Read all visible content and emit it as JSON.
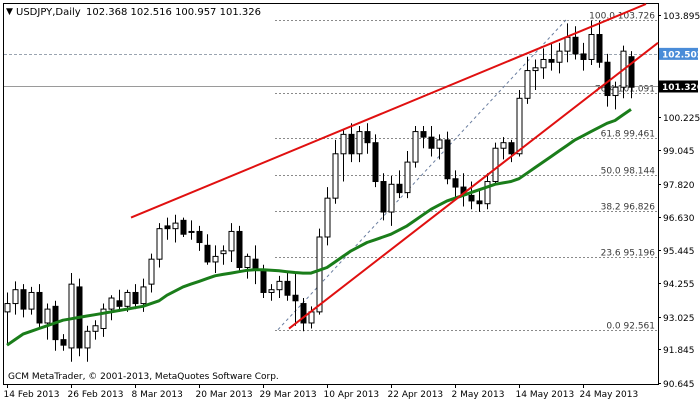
{
  "header": {
    "symbol_label": "USDJPY,Daily",
    "ohlc_label": "102.368 102.516 100.957 101.326"
  },
  "watermark": "GCM MetaTrader, © 2001-2013, MetaQuotes Software Corp.",
  "chart_data": {
    "type": "candlestick",
    "symbol": "USDJPY",
    "timeframe": "Daily",
    "ylim": [
      90.6,
      104.3
    ],
    "y_ticks": [
      "103.895",
      "102.502",
      "101.326",
      "100.225",
      "99.045",
      "97.820",
      "96.630",
      "95.445",
      "94.255",
      "93.025",
      "91.845",
      "90.645"
    ],
    "x_ticks": [
      "14 Feb 2013",
      "26 Feb 2013",
      "8 Mar 2013",
      "20 Mar 2013",
      "29 Mar 2013",
      "10 Apr 2013",
      "22 Apr 2013",
      "2 May 2013",
      "14 May 2013",
      "24 May 2013"
    ],
    "price_tags": [
      {
        "value": 102.502,
        "label": "102.502",
        "color": "#4a8cd8"
      },
      {
        "value": 101.326,
        "label": "101.326",
        "color": "#000000"
      }
    ],
    "fibonacci": [
      {
        "level": 100.0,
        "price": 103.726,
        "label": "100.0 103.726"
      },
      {
        "level": 76.4,
        "price": 101.091,
        "label": "76.4 101.091"
      },
      {
        "level": 61.8,
        "price": 99.461,
        "label": "61.8 99.461"
      },
      {
        "level": 50.0,
        "price": 98.144,
        "label": "50.0 98.144"
      },
      {
        "level": 38.2,
        "price": 96.826,
        "label": "38.2 96.826"
      },
      {
        "level": 23.6,
        "price": 95.196,
        "label": "23.6 95.196"
      },
      {
        "level": 0.0,
        "price": 92.561,
        "label": "0.0 92.561"
      }
    ],
    "candles": [
      {
        "o": 93.2,
        "h": 93.9,
        "l": 92.0,
        "c": 93.5
      },
      {
        "o": 93.5,
        "h": 94.3,
        "l": 93.1,
        "c": 94.0
      },
      {
        "o": 94.0,
        "h": 94.2,
        "l": 93.0,
        "c": 93.3
      },
      {
        "o": 93.3,
        "h": 94.1,
        "l": 93.1,
        "c": 93.9
      },
      {
        "o": 93.9,
        "h": 94.2,
        "l": 92.6,
        "c": 92.8
      },
      {
        "o": 92.8,
        "h": 93.5,
        "l": 92.2,
        "c": 93.3
      },
      {
        "o": 93.4,
        "h": 93.6,
        "l": 91.8,
        "c": 92.2
      },
      {
        "o": 92.2,
        "h": 92.4,
        "l": 91.8,
        "c": 92.0
      },
      {
        "o": 91.9,
        "h": 94.6,
        "l": 91.4,
        "c": 94.2
      },
      {
        "o": 94.1,
        "h": 94.4,
        "l": 91.6,
        "c": 91.9
      },
      {
        "o": 91.9,
        "h": 92.7,
        "l": 91.4,
        "c": 92.5
      },
      {
        "o": 92.5,
        "h": 92.9,
        "l": 92.2,
        "c": 92.7
      },
      {
        "o": 92.6,
        "h": 93.5,
        "l": 92.3,
        "c": 93.3
      },
      {
        "o": 93.3,
        "h": 93.8,
        "l": 92.9,
        "c": 93.7
      },
      {
        "o": 93.6,
        "h": 94.0,
        "l": 93.2,
        "c": 93.4
      },
      {
        "o": 93.4,
        "h": 94.0,
        "l": 93.2,
        "c": 93.9
      },
      {
        "o": 93.9,
        "h": 94.2,
        "l": 93.3,
        "c": 93.5
      },
      {
        "o": 93.5,
        "h": 94.4,
        "l": 93.2,
        "c": 94.1
      },
      {
        "o": 94.2,
        "h": 95.3,
        "l": 93.9,
        "c": 95.1
      },
      {
        "o": 95.1,
        "h": 96.4,
        "l": 94.8,
        "c": 96.2
      },
      {
        "o": 96.3,
        "h": 96.6,
        "l": 95.8,
        "c": 96.2
      },
      {
        "o": 96.2,
        "h": 96.7,
        "l": 95.7,
        "c": 96.4
      },
      {
        "o": 96.5,
        "h": 96.6,
        "l": 95.9,
        "c": 96.0
      },
      {
        "o": 96.1,
        "h": 96.5,
        "l": 95.8,
        "c": 96.1
      },
      {
        "o": 96.1,
        "h": 96.3,
        "l": 95.4,
        "c": 95.7
      },
      {
        "o": 95.6,
        "h": 96.0,
        "l": 94.9,
        "c": 95.0
      },
      {
        "o": 95.0,
        "h": 95.6,
        "l": 94.6,
        "c": 95.2
      },
      {
        "o": 95.3,
        "h": 95.6,
        "l": 94.9,
        "c": 95.4
      },
      {
        "o": 95.4,
        "h": 96.4,
        "l": 95.0,
        "c": 96.1
      },
      {
        "o": 96.1,
        "h": 96.3,
        "l": 94.6,
        "c": 94.8
      },
      {
        "o": 94.8,
        "h": 95.3,
        "l": 94.4,
        "c": 95.2
      },
      {
        "o": 95.1,
        "h": 95.6,
        "l": 94.2,
        "c": 94.7
      },
      {
        "o": 94.7,
        "h": 94.9,
        "l": 93.7,
        "c": 93.9
      },
      {
        "o": 93.9,
        "h": 94.2,
        "l": 93.6,
        "c": 94.0
      },
      {
        "o": 94.0,
        "h": 94.5,
        "l": 93.7,
        "c": 94.3
      },
      {
        "o": 94.3,
        "h": 94.6,
        "l": 93.6,
        "c": 93.8
      },
      {
        "o": 93.8,
        "h": 94.6,
        "l": 92.7,
        "c": 93.6
      },
      {
        "o": 93.5,
        "h": 93.7,
        "l": 92.5,
        "c": 92.8
      },
      {
        "o": 92.8,
        "h": 93.4,
        "l": 92.6,
        "c": 93.2
      },
      {
        "o": 93.2,
        "h": 96.2,
        "l": 93.1,
        "c": 95.9
      },
      {
        "o": 95.9,
        "h": 97.7,
        "l": 95.6,
        "c": 97.3
      },
      {
        "o": 97.3,
        "h": 99.4,
        "l": 97.1,
        "c": 98.9
      },
      {
        "o": 98.9,
        "h": 99.8,
        "l": 97.9,
        "c": 99.6
      },
      {
        "o": 99.6,
        "h": 100.0,
        "l": 98.6,
        "c": 98.9
      },
      {
        "o": 98.9,
        "h": 99.9,
        "l": 98.6,
        "c": 99.7
      },
      {
        "o": 99.7,
        "h": 100.0,
        "l": 98.9,
        "c": 99.3
      },
      {
        "o": 99.3,
        "h": 99.6,
        "l": 97.7,
        "c": 97.9
      },
      {
        "o": 97.9,
        "h": 98.2,
        "l": 96.5,
        "c": 96.8
      },
      {
        "o": 96.8,
        "h": 98.1,
        "l": 96.3,
        "c": 97.8
      },
      {
        "o": 97.8,
        "h": 98.3,
        "l": 97.3,
        "c": 97.5
      },
      {
        "o": 97.5,
        "h": 99.0,
        "l": 97.3,
        "c": 98.6
      },
      {
        "o": 98.6,
        "h": 99.9,
        "l": 98.4,
        "c": 99.7
      },
      {
        "o": 99.7,
        "h": 99.9,
        "l": 99.1,
        "c": 99.5
      },
      {
        "o": 99.5,
        "h": 99.9,
        "l": 98.8,
        "c": 99.1
      },
      {
        "o": 99.1,
        "h": 99.6,
        "l": 98.7,
        "c": 99.4
      },
      {
        "o": 99.4,
        "h": 99.7,
        "l": 97.8,
        "c": 98.0
      },
      {
        "o": 98.0,
        "h": 98.3,
        "l": 97.3,
        "c": 97.7
      },
      {
        "o": 97.7,
        "h": 98.2,
        "l": 97.0,
        "c": 97.4
      },
      {
        "o": 97.4,
        "h": 97.9,
        "l": 96.9,
        "c": 97.2
      },
      {
        "o": 97.2,
        "h": 97.6,
        "l": 96.8,
        "c": 97.1
      },
      {
        "o": 97.1,
        "h": 98.2,
        "l": 96.9,
        "c": 97.9
      },
      {
        "o": 97.9,
        "h": 99.3,
        "l": 97.8,
        "c": 99.1
      },
      {
        "o": 99.1,
        "h": 99.5,
        "l": 98.7,
        "c": 99.3
      },
      {
        "o": 99.3,
        "h": 99.4,
        "l": 98.6,
        "c": 98.9
      },
      {
        "o": 98.9,
        "h": 101.2,
        "l": 98.8,
        "c": 100.9
      },
      {
        "o": 100.9,
        "h": 102.4,
        "l": 100.7,
        "c": 101.9
      },
      {
        "o": 101.9,
        "h": 102.3,
        "l": 101.2,
        "c": 102.0
      },
      {
        "o": 102.0,
        "h": 102.7,
        "l": 101.6,
        "c": 102.3
      },
      {
        "o": 102.3,
        "h": 102.9,
        "l": 101.9,
        "c": 102.2
      },
      {
        "o": 102.2,
        "h": 102.9,
        "l": 101.8,
        "c": 102.6
      },
      {
        "o": 102.6,
        "h": 103.6,
        "l": 102.2,
        "c": 103.1
      },
      {
        "o": 103.1,
        "h": 103.5,
        "l": 102.3,
        "c": 102.5
      },
      {
        "o": 102.5,
        "h": 102.9,
        "l": 101.9,
        "c": 102.3
      },
      {
        "o": 102.3,
        "h": 103.7,
        "l": 102.1,
        "c": 103.2
      },
      {
        "o": 103.2,
        "h": 103.7,
        "l": 102.0,
        "c": 102.2
      },
      {
        "o": 102.2,
        "h": 102.5,
        "l": 100.6,
        "c": 101.0
      },
      {
        "o": 101.0,
        "h": 101.5,
        "l": 100.5,
        "c": 101.3
      },
      {
        "o": 101.3,
        "h": 102.8,
        "l": 100.9,
        "c": 102.6
      },
      {
        "o": 102.4,
        "h": 102.6,
        "l": 100.9,
        "c": 101.3
      }
    ],
    "ma": [
      92.0,
      92.2,
      92.4,
      92.5,
      92.6,
      92.7,
      92.8,
      92.9,
      92.95,
      93.0,
      93.05,
      93.1,
      93.15,
      93.2,
      93.25,
      93.3,
      93.35,
      93.4,
      93.5,
      93.6,
      93.8,
      93.95,
      94.1,
      94.2,
      94.3,
      94.4,
      94.5,
      94.55,
      94.6,
      94.65,
      94.7,
      94.72,
      94.72,
      94.7,
      94.68,
      94.65,
      94.62,
      94.6,
      94.6,
      94.7,
      94.8,
      95.0,
      95.2,
      95.4,
      95.55,
      95.7,
      95.8,
      95.9,
      96.0,
      96.15,
      96.3,
      96.5,
      96.7,
      96.9,
      97.05,
      97.2,
      97.3,
      97.4,
      97.5,
      97.6,
      97.7,
      97.8,
      97.85,
      97.9,
      98.0,
      98.2,
      98.4,
      98.6,
      98.8,
      99.0,
      99.2,
      99.4,
      99.55,
      99.7,
      99.85,
      100.0,
      100.1,
      100.3,
      100.5
    ]
  }
}
